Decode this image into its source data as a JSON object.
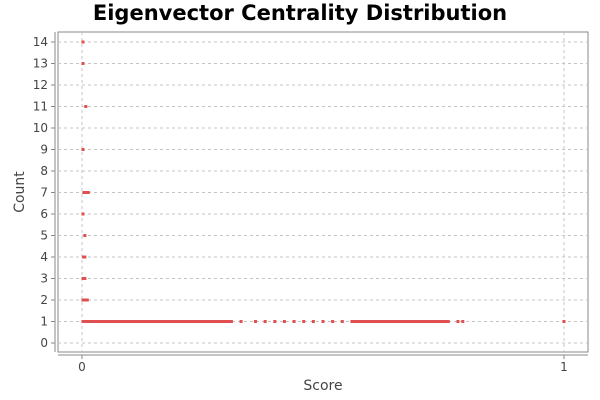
{
  "chart_data": {
    "type": "scatter",
    "title": "Eigenvector Centrality Distribution",
    "xlabel": "Score",
    "ylabel": "Count",
    "xlim": [
      0,
      1
    ],
    "ylim": [
      0,
      14
    ],
    "x_ticks": [
      "0",
      "1"
    ],
    "y_ticks": [
      "0",
      "1",
      "2",
      "3",
      "4",
      "5",
      "6",
      "7",
      "8",
      "9",
      "10",
      "11",
      "12",
      "13",
      "14"
    ],
    "grid": true,
    "legend": "none",
    "marker_color": "#e05050",
    "points": [
      {
        "x": 0.002,
        "y": 14
      },
      {
        "x": 0.002,
        "y": 13
      },
      {
        "x": 0.008,
        "y": 11
      },
      {
        "x": 0.002,
        "y": 9
      },
      {
        "x": 0.004,
        "y": 7
      },
      {
        "x": 0.008,
        "y": 7
      },
      {
        "x": 0.013,
        "y": 7
      },
      {
        "x": 0.002,
        "y": 6
      },
      {
        "x": 0.006,
        "y": 5
      },
      {
        "x": 0.003,
        "y": 4
      },
      {
        "x": 0.006,
        "y": 4
      },
      {
        "x": 0.002,
        "y": 3
      },
      {
        "x": 0.006,
        "y": 3
      },
      {
        "x": 0.002,
        "y": 2
      },
      {
        "x": 0.006,
        "y": 2
      },
      {
        "x": 0.011,
        "y": 2
      },
      {
        "x": 0.002,
        "y": 1
      },
      {
        "x": 0.02,
        "y": 1
      },
      {
        "x": 0.05,
        "y": 1
      },
      {
        "x": 0.1,
        "y": 1
      },
      {
        "x": 0.15,
        "y": 1
      },
      {
        "x": 0.2,
        "y": 1
      },
      {
        "x": 0.25,
        "y": 1
      },
      {
        "x": 0.29,
        "y": 1
      },
      {
        "x": 0.31,
        "y": 1
      },
      {
        "x": 0.33,
        "y": 1
      },
      {
        "x": 0.36,
        "y": 1
      },
      {
        "x": 0.38,
        "y": 1
      },
      {
        "x": 0.4,
        "y": 1
      },
      {
        "x": 0.42,
        "y": 1
      },
      {
        "x": 0.44,
        "y": 1
      },
      {
        "x": 0.46,
        "y": 1
      },
      {
        "x": 0.48,
        "y": 1
      },
      {
        "x": 0.5,
        "y": 1
      },
      {
        "x": 0.52,
        "y": 1
      },
      {
        "x": 0.54,
        "y": 1
      },
      {
        "x": 0.56,
        "y": 1
      },
      {
        "x": 0.6,
        "y": 1
      },
      {
        "x": 0.65,
        "y": 1
      },
      {
        "x": 0.7,
        "y": 1
      },
      {
        "x": 0.74,
        "y": 1
      },
      {
        "x": 0.76,
        "y": 1
      },
      {
        "x": 0.78,
        "y": 1
      },
      {
        "x": 0.79,
        "y": 1
      },
      {
        "x": 1.0,
        "y": 1
      }
    ],
    "segments": [
      {
        "x_start": 0.002,
        "x_end": 0.31,
        "y": 1
      },
      {
        "x_start": 0.56,
        "x_end": 0.76,
        "y": 1
      }
    ]
  }
}
